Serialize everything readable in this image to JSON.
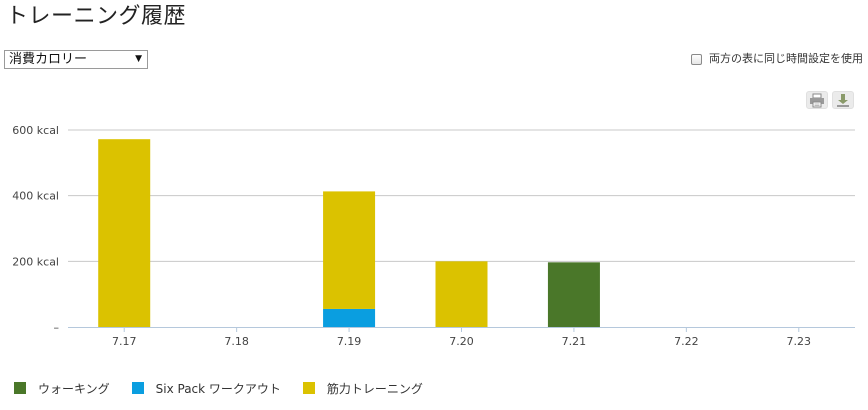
{
  "page": {
    "title": "トレーニング履歴"
  },
  "controls": {
    "metric_select": {
      "value": "消費カロリー",
      "arrow": "▼"
    },
    "sync_checkbox": {
      "label": "両方の表に同じ時間設定を使用",
      "checked": false
    }
  },
  "toolbar": {
    "print_icon": "printer-icon",
    "download_icon": "download-icon"
  },
  "colors": {
    "walking": "#4a7729",
    "sixpack": "#0a9ee0",
    "strength": "#dbc200",
    "grid": "#c8c8c8",
    "axis": "#b5c8dc"
  },
  "chart_data": {
    "type": "bar",
    "stacked": true,
    "categories": [
      "7.17",
      "7.18",
      "7.19",
      "7.20",
      "7.21",
      "7.22",
      "7.23"
    ],
    "series": [
      {
        "name": "ウォーキング",
        "key": "walking",
        "values": [
          0,
          0,
          0,
          0,
          197,
          0,
          0
        ]
      },
      {
        "name": "Six Pack ワークアウト",
        "key": "sixpack",
        "values": [
          0,
          0,
          55,
          0,
          0,
          0,
          0
        ]
      },
      {
        "name": "筋力トレーニング",
        "key": "strength",
        "values": [
          572,
          0,
          358,
          200,
          0,
          0,
          0
        ]
      }
    ],
    "y_ticks": [
      {
        "value": 0,
        "label": "–"
      },
      {
        "value": 200,
        "label": "200 kcal"
      },
      {
        "value": 400,
        "label": "400 kcal"
      },
      {
        "value": 600,
        "label": "600 kcal"
      }
    ],
    "ylim": [
      0,
      600
    ],
    "grid": true,
    "legend_position": "bottom-left"
  }
}
